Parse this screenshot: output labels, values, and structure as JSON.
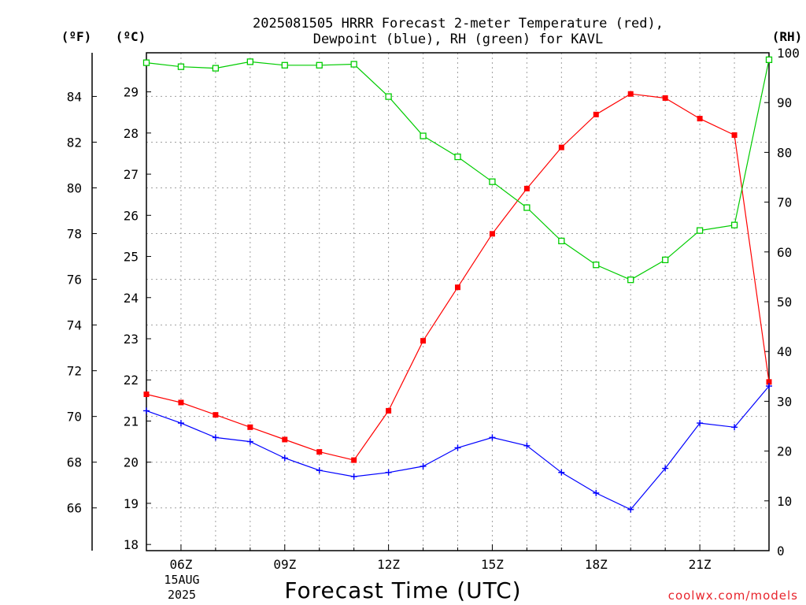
{
  "title_line1": "2025081505 HRRR Forecast 2-meter Temperature (red),",
  "title_line2": "Dewpoint (blue), RH (green) for KAVL",
  "unit_f": "(ºF)",
  "unit_c": "(ºC)",
  "unit_rh": "(RH)",
  "xlabel": "Forecast Time (UTC)",
  "credit": "coolwx.com/models",
  "date_label_1": "15AUG",
  "date_label_2": "2025",
  "colors": {
    "temperature": "#ff0000",
    "dewpoint": "#0000ff",
    "rh": "#00cc00"
  },
  "chart_data": {
    "type": "line",
    "x": [
      5,
      6,
      7,
      8,
      9,
      10,
      11,
      12,
      13,
      14,
      15,
      16,
      17,
      18,
      19,
      20,
      21,
      22,
      23
    ],
    "x_unit": "hour UTC",
    "xlim": [
      5,
      23
    ],
    "x_ticks": [
      {
        "x": 6,
        "label": "06Z"
      },
      {
        "x": 9,
        "label": "09Z"
      },
      {
        "x": 12,
        "label": "12Z"
      },
      {
        "x": 15,
        "label": "15Z"
      },
      {
        "x": 18,
        "label": "18Z"
      },
      {
        "x": 21,
        "label": "21Z"
      }
    ],
    "y_c_lim": [
      17.85,
      29.95
    ],
    "y_c_ticks": [
      18,
      19,
      20,
      21,
      22,
      23,
      24,
      25,
      26,
      27,
      28,
      29
    ],
    "y_f_ticks": [
      66,
      68,
      70,
      72,
      74,
      76,
      78,
      80,
      82,
      84
    ],
    "y_rh_lim": [
      0,
      100
    ],
    "y_rh_ticks": [
      0,
      10,
      20,
      30,
      40,
      50,
      60,
      70,
      80,
      90,
      100
    ],
    "grid": true,
    "series": [
      {
        "name": "Temperature",
        "axis": "C",
        "marker": "square",
        "values": [
          21.65,
          21.45,
          21.15,
          20.85,
          20.55,
          20.25,
          20.05,
          21.25,
          22.95,
          24.25,
          25.55,
          26.65,
          27.65,
          28.45,
          28.95,
          28.85,
          28.35,
          27.95,
          21.95
        ]
      },
      {
        "name": "Dewpoint",
        "axis": "C",
        "marker": "plus",
        "values": [
          21.25,
          20.95,
          20.6,
          20.5,
          20.1,
          19.8,
          19.65,
          19.75,
          19.9,
          20.35,
          20.6,
          20.4,
          19.75,
          19.25,
          18.85,
          19.85,
          20.95,
          20.85,
          21.85
        ]
      },
      {
        "name": "RH",
        "axis": "RH",
        "marker": "open-square",
        "values": [
          98,
          97.2,
          96.9,
          98.2,
          97.5,
          97.5,
          97.7,
          91.2,
          83.3,
          79.1,
          74.1,
          68.9,
          62.2,
          57.4,
          54.4,
          58.4,
          64.3,
          65.4,
          98.6
        ]
      }
    ]
  }
}
